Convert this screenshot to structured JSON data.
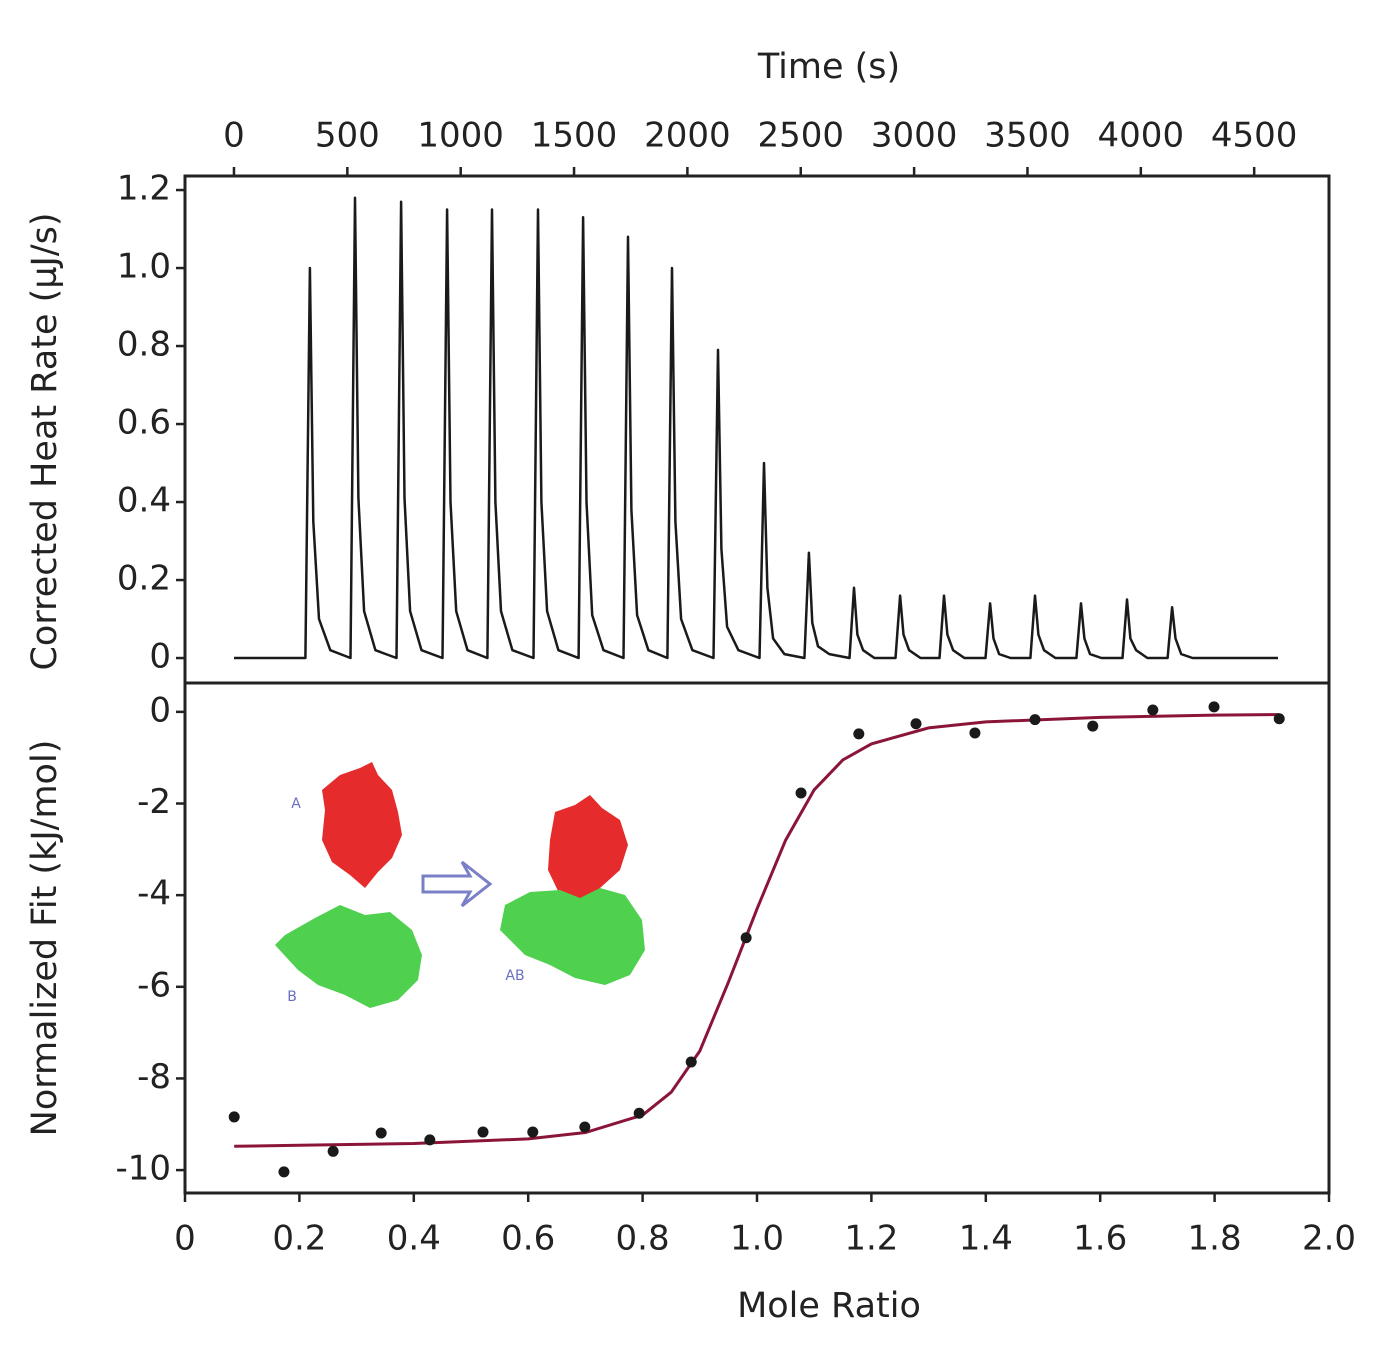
{
  "chart_data": [
    {
      "type": "line",
      "xlabel": "Time (s)",
      "ylabel": "Corrected Heat Rate (µJ/s)",
      "xaxis_position": "top",
      "color": "#1a1a1a",
      "x": [
        0,
        315,
        335,
        350,
        375,
        425,
        514,
        534,
        549,
        574,
        624,
        717,
        737,
        752,
        777,
        827,
        920,
        940,
        955,
        980,
        1030,
        1118,
        1138,
        1153,
        1178,
        1228,
        1321,
        1341,
        1356,
        1381,
        1431,
        1520,
        1540,
        1555,
        1580,
        1630,
        1718,
        1738,
        1753,
        1778,
        1828,
        1912,
        1932,
        1947,
        1972,
        2022,
        2115,
        2135,
        2150,
        2175,
        2225,
        2318,
        2338,
        2353,
        2378,
        2428,
        2516,
        2536,
        2551,
        2576,
        2626,
        2715,
        2735,
        2750,
        2775,
        2825,
        2918,
        2938,
        2953,
        2978,
        3028,
        3112,
        3132,
        3147,
        3172,
        3222,
        3315,
        3335,
        3350,
        3375,
        3425,
        3513,
        3533,
        3548,
        3573,
        3623,
        3716,
        3736,
        3751,
        3776,
        3826,
        3919,
        3939,
        3954,
        3979,
        4029,
        4118,
        4138,
        4153,
        4178,
        4228,
        4605
      ],
      "values": [
        0,
        0,
        1.0,
        0.35,
        0.1,
        0.02,
        0,
        1.18,
        0.41,
        0.12,
        0.02,
        0,
        1.17,
        0.41,
        0.12,
        0.02,
        0,
        1.15,
        0.4,
        0.12,
        0.02,
        0,
        1.15,
        0.4,
        0.12,
        0.02,
        0,
        1.15,
        0.4,
        0.12,
        0.02,
        0,
        1.13,
        0.4,
        0.11,
        0.02,
        0,
        1.08,
        0.38,
        0.11,
        0.02,
        0,
        1.0,
        0.35,
        0.1,
        0.02,
        0,
        0.79,
        0.28,
        0.08,
        0.02,
        0,
        0.5,
        0.18,
        0.05,
        0.01,
        0,
        0.27,
        0.09,
        0.03,
        0.01,
        0,
        0.18,
        0.06,
        0.02,
        0,
        0,
        0.16,
        0.06,
        0.02,
        0,
        0,
        0.16,
        0.06,
        0.02,
        0,
        0,
        0.14,
        0.05,
        0.01,
        0,
        0,
        0.16,
        0.06,
        0.02,
        0,
        0,
        0.14,
        0.05,
        0.01,
        0,
        0,
        0.15,
        0.05,
        0.02,
        0,
        0,
        0.13,
        0.05,
        0.01,
        0,
        0
      ],
      "xlim": [
        -216,
        4830
      ],
      "ylim": [
        -0.064,
        1.236
      ],
      "xticks": [
        0,
        500,
        1000,
        1500,
        2000,
        2500,
        3000,
        3500,
        4000,
        4500
      ],
      "yticks": [
        0,
        0.2,
        0.4,
        0.6,
        0.8,
        {
          "value": 1,
          "label": "1.0"
        },
        1.2
      ]
    },
    {
      "type": "scatter",
      "xlabel": "Mole Ratio",
      "ylabel": "Normalized Fit (kJ/mol)",
      "xaxis_position": "bottom",
      "annotations": [
        "A",
        "B",
        "AB"
      ],
      "series": [
        {
          "mode": "markers",
          "color": "#1a1a1a",
          "x": [
            0.086,
            0.173,
            0.259,
            0.343,
            0.428,
            0.521,
            0.608,
            0.699,
            0.794,
            0.885,
            0.981,
            1.077,
            1.178,
            1.278,
            1.381,
            1.486,
            1.587,
            1.692,
            1.799,
            1.913
          ],
          "values": [
            -8.84,
            -10.04,
            -9.59,
            -9.19,
            -9.34,
            -9.17,
            -9.17,
            -9.06,
            -8.76,
            -7.64,
            -4.93,
            -1.77,
            -0.48,
            -0.26,
            -0.46,
            -0.17,
            -0.31,
            0.04,
            0.11,
            -0.15
          ]
        },
        {
          "mode": "line",
          "color": "#8b1538",
          "x": [
            0.086,
            0.2,
            0.4,
            0.6,
            0.7,
            0.8,
            0.85,
            0.9,
            0.95,
            1.0,
            1.05,
            1.1,
            1.15,
            1.2,
            1.3,
            1.4,
            1.6,
            1.8,
            1.913
          ],
          "values": [
            -9.48,
            -9.46,
            -9.42,
            -9.32,
            -9.18,
            -8.8,
            -8.3,
            -7.4,
            -5.9,
            -4.3,
            -2.8,
            -1.7,
            -1.05,
            -0.7,
            -0.35,
            -0.22,
            -0.12,
            -0.07,
            -0.06
          ]
        }
      ],
      "xlim": [
        0,
        2
      ],
      "ylim": [
        -10.5,
        0.63
      ],
      "xticks": [
        0,
        0.2,
        0.4,
        0.6,
        0.8,
        {
          "value": 1,
          "label": "1.0"
        },
        1.2,
        1.4,
        1.6,
        1.8,
        {
          "value": 2,
          "label": "2.0"
        }
      ],
      "yticks": [
        0,
        -2,
        -4,
        -6,
        -8,
        -10
      ]
    }
  ]
}
